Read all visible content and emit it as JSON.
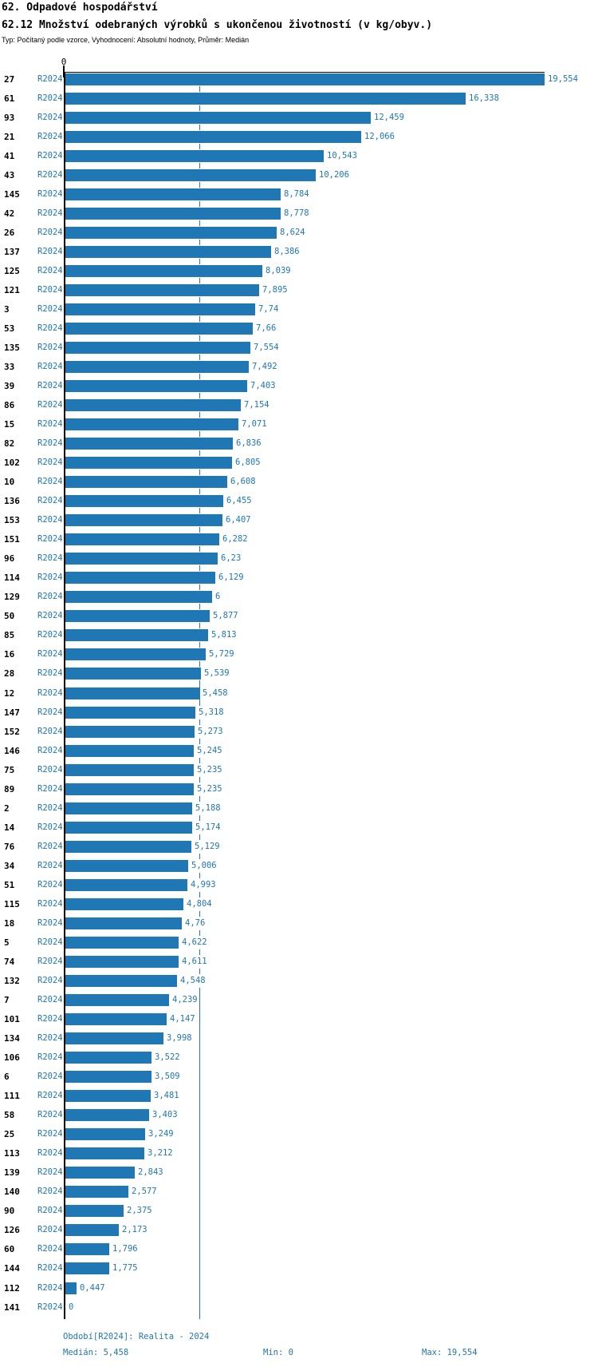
{
  "header": {
    "title": "62. Odpadové hospodářství",
    "subtitle": "62.12 Množství odebraných výrobků s ukončenou životností (v kg/obyv.)",
    "meta": "Typ: Počítaný podle vzorce, Vyhodnocení: Absolutní hodnoty, Průměr: Medián"
  },
  "axis": {
    "zero_label": "0"
  },
  "colors": {
    "bar": "#1f77b4",
    "blue_text": "#1f77b4",
    "axis": "#000000"
  },
  "chart_data": {
    "type": "bar",
    "orientation": "horizontal",
    "title": "62.12 Množství odebraných výrobků s ukončenou životností (v kg/obyv.)",
    "series_label": "R2024",
    "unit": "kg/obyv.",
    "xlim": [
      0,
      19.554
    ],
    "median": 5.458,
    "grid": false,
    "legend_position": "none",
    "rows": [
      {
        "id": "27",
        "period": "R2024",
        "value": 19.554,
        "label": "19,554"
      },
      {
        "id": "61",
        "period": "R2024",
        "value": 16.338,
        "label": "16,338"
      },
      {
        "id": "93",
        "period": "R2024",
        "value": 12.459,
        "label": "12,459"
      },
      {
        "id": "21",
        "period": "R2024",
        "value": 12.066,
        "label": "12,066"
      },
      {
        "id": "41",
        "period": "R2024",
        "value": 10.543,
        "label": "10,543"
      },
      {
        "id": "43",
        "period": "R2024",
        "value": 10.206,
        "label": "10,206"
      },
      {
        "id": "145",
        "period": "R2024",
        "value": 8.784,
        "label": "8,784"
      },
      {
        "id": "42",
        "period": "R2024",
        "value": 8.778,
        "label": "8,778"
      },
      {
        "id": "26",
        "period": "R2024",
        "value": 8.624,
        "label": "8,624"
      },
      {
        "id": "137",
        "period": "R2024",
        "value": 8.386,
        "label": "8,386"
      },
      {
        "id": "125",
        "period": "R2024",
        "value": 8.039,
        "label": "8,039"
      },
      {
        "id": "121",
        "period": "R2024",
        "value": 7.895,
        "label": "7,895"
      },
      {
        "id": "3",
        "period": "R2024",
        "value": 7.74,
        "label": "7,74"
      },
      {
        "id": "53",
        "period": "R2024",
        "value": 7.66,
        "label": "7,66"
      },
      {
        "id": "135",
        "period": "R2024",
        "value": 7.554,
        "label": "7,554"
      },
      {
        "id": "33",
        "period": "R2024",
        "value": 7.492,
        "label": "7,492"
      },
      {
        "id": "39",
        "period": "R2024",
        "value": 7.403,
        "label": "7,403"
      },
      {
        "id": "86",
        "period": "R2024",
        "value": 7.154,
        "label": "7,154"
      },
      {
        "id": "15",
        "period": "R2024",
        "value": 7.071,
        "label": "7,071"
      },
      {
        "id": "82",
        "period": "R2024",
        "value": 6.836,
        "label": "6,836"
      },
      {
        "id": "102",
        "period": "R2024",
        "value": 6.805,
        "label": "6,805"
      },
      {
        "id": "10",
        "period": "R2024",
        "value": 6.608,
        "label": "6,608"
      },
      {
        "id": "136",
        "period": "R2024",
        "value": 6.455,
        "label": "6,455"
      },
      {
        "id": "153",
        "period": "R2024",
        "value": 6.407,
        "label": "6,407"
      },
      {
        "id": "151",
        "period": "R2024",
        "value": 6.282,
        "label": "6,282"
      },
      {
        "id": "96",
        "period": "R2024",
        "value": 6.23,
        "label": "6,23"
      },
      {
        "id": "114",
        "period": "R2024",
        "value": 6.129,
        "label": "6,129"
      },
      {
        "id": "129",
        "period": "R2024",
        "value": 6,
        "label": "6"
      },
      {
        "id": "50",
        "period": "R2024",
        "value": 5.877,
        "label": "5,877"
      },
      {
        "id": "85",
        "period": "R2024",
        "value": 5.813,
        "label": "5,813"
      },
      {
        "id": "16",
        "period": "R2024",
        "value": 5.729,
        "label": "5,729"
      },
      {
        "id": "28",
        "period": "R2024",
        "value": 5.539,
        "label": "5,539"
      },
      {
        "id": "12",
        "period": "R2024",
        "value": 5.458,
        "label": "5,458"
      },
      {
        "id": "147",
        "period": "R2024",
        "value": 5.318,
        "label": "5,318"
      },
      {
        "id": "152",
        "period": "R2024",
        "value": 5.273,
        "label": "5,273"
      },
      {
        "id": "146",
        "period": "R2024",
        "value": 5.245,
        "label": "5,245"
      },
      {
        "id": "75",
        "period": "R2024",
        "value": 5.235,
        "label": "5,235"
      },
      {
        "id": "89",
        "period": "R2024",
        "value": 5.235,
        "label": "5,235"
      },
      {
        "id": "2",
        "period": "R2024",
        "value": 5.188,
        "label": "5,188"
      },
      {
        "id": "14",
        "period": "R2024",
        "value": 5.174,
        "label": "5,174"
      },
      {
        "id": "76",
        "period": "R2024",
        "value": 5.129,
        "label": "5,129"
      },
      {
        "id": "34",
        "period": "R2024",
        "value": 5.006,
        "label": "5,006"
      },
      {
        "id": "51",
        "period": "R2024",
        "value": 4.993,
        "label": "4,993"
      },
      {
        "id": "115",
        "period": "R2024",
        "value": 4.804,
        "label": "4,804"
      },
      {
        "id": "18",
        "period": "R2024",
        "value": 4.76,
        "label": "4,76"
      },
      {
        "id": "5",
        "period": "R2024",
        "value": 4.622,
        "label": "4,622"
      },
      {
        "id": "74",
        "period": "R2024",
        "value": 4.611,
        "label": "4,611"
      },
      {
        "id": "132",
        "period": "R2024",
        "value": 4.548,
        "label": "4,548"
      },
      {
        "id": "7",
        "period": "R2024",
        "value": 4.239,
        "label": "4,239"
      },
      {
        "id": "101",
        "period": "R2024",
        "value": 4.147,
        "label": "4,147"
      },
      {
        "id": "134",
        "period": "R2024",
        "value": 3.998,
        "label": "3,998"
      },
      {
        "id": "106",
        "period": "R2024",
        "value": 3.522,
        "label": "3,522"
      },
      {
        "id": "6",
        "period": "R2024",
        "value": 3.509,
        "label": "3,509"
      },
      {
        "id": "111",
        "period": "R2024",
        "value": 3.481,
        "label": "3,481"
      },
      {
        "id": "58",
        "period": "R2024",
        "value": 3.403,
        "label": "3,403"
      },
      {
        "id": "25",
        "period": "R2024",
        "value": 3.249,
        "label": "3,249"
      },
      {
        "id": "113",
        "period": "R2024",
        "value": 3.212,
        "label": "3,212"
      },
      {
        "id": "139",
        "period": "R2024",
        "value": 2.843,
        "label": "2,843"
      },
      {
        "id": "140",
        "period": "R2024",
        "value": 2.577,
        "label": "2,577"
      },
      {
        "id": "90",
        "period": "R2024",
        "value": 2.375,
        "label": "2,375"
      },
      {
        "id": "126",
        "period": "R2024",
        "value": 2.173,
        "label": "2,173"
      },
      {
        "id": "60",
        "period": "R2024",
        "value": 1.796,
        "label": "1,796"
      },
      {
        "id": "144",
        "period": "R2024",
        "value": 1.775,
        "label": "1,775"
      },
      {
        "id": "112",
        "period": "R2024",
        "value": 0.447,
        "label": "0,447"
      },
      {
        "id": "141",
        "period": "R2024",
        "value": 0,
        "label": "0"
      }
    ]
  },
  "footer": {
    "period": "Období[R2024]: Realita - 2024",
    "median": "Medián: 5,458",
    "min": "Min: 0",
    "max": "Max: 19,554"
  }
}
